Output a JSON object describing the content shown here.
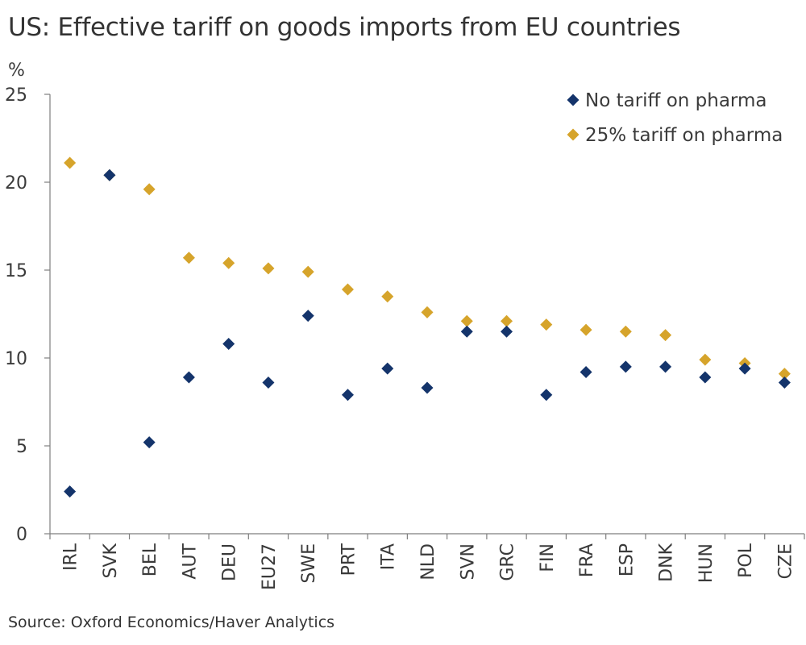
{
  "chart_data": {
    "type": "scatter",
    "title": "US: Effective tariff on goods imports from EU countries",
    "ylabel": "%",
    "xlabel": "",
    "ylim": [
      0,
      25
    ],
    "yticks": [
      "0",
      "5",
      "10",
      "15",
      "20",
      "25"
    ],
    "categories": [
      "IRL",
      "SVK",
      "BEL",
      "AUT",
      "DEU",
      "EU27",
      "SWE",
      "PRT",
      "ITA",
      "NLD",
      "SVN",
      "GRC",
      "FIN",
      "FRA",
      "ESP",
      "DNK",
      "HUN",
      "POL",
      "CZE"
    ],
    "series": [
      {
        "name": "No tariff on pharma",
        "color": "#14346b",
        "values": [
          2.4,
          20.4,
          5.2,
          8.9,
          10.8,
          8.6,
          12.4,
          7.9,
          9.4,
          8.3,
          11.5,
          11.5,
          7.9,
          9.2,
          9.5,
          9.5,
          8.9,
          9.4,
          8.6
        ]
      },
      {
        "name": "25% tariff on pharma",
        "color": "#d6a42b",
        "values": [
          21.1,
          20.4,
          19.6,
          15.7,
          15.4,
          15.1,
          14.9,
          13.9,
          13.5,
          12.6,
          12.1,
          12.1,
          11.9,
          11.6,
          11.5,
          11.3,
          9.9,
          9.7,
          9.1
        ]
      }
    ],
    "legend": "top-right",
    "grid": false
  },
  "source": "Source: Oxford Economics/Haver Analytics"
}
